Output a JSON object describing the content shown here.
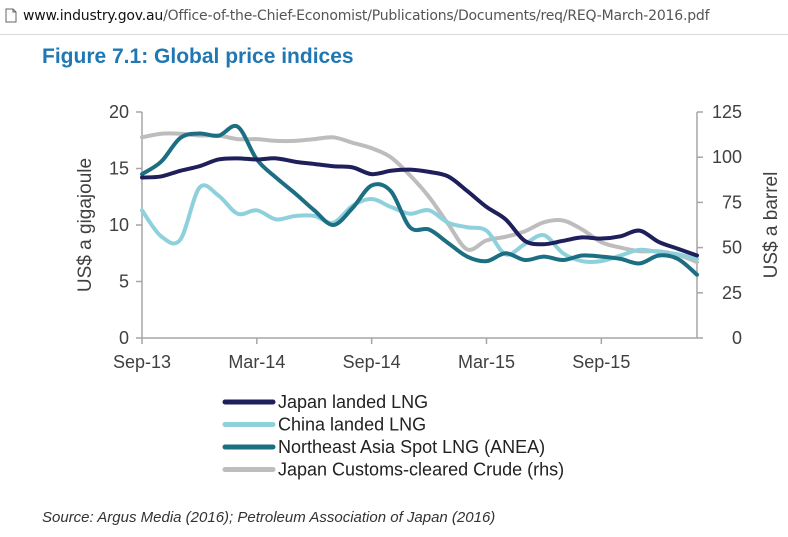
{
  "browser": {
    "url_host": "www.industry.gov.au",
    "url_path": "/Office-of-the-Chief-Economist/Publications/Documents/req/REQ-March-2016.pdf",
    "page_icon": "document-icon"
  },
  "figure": {
    "title": "Figure 7.1: Global price indices",
    "source": "Source: Argus Media (2016); Petroleum Association of Japan (2016)"
  },
  "chart_data": {
    "type": "line",
    "title": "Figure 7.1: Global price indices",
    "ylabel": "US$ a gigajoule",
    "ylabel_right": "US$ a barrel",
    "ylim": [
      0,
      20
    ],
    "ylim_right": [
      0,
      125
    ],
    "y_ticks": [
      "0",
      "5",
      "10",
      "15",
      "20"
    ],
    "y_ticks_right": [
      "0",
      "25",
      "50",
      "75",
      "100",
      "125"
    ],
    "x_ticks": [
      "Sep-13",
      "Mar-14",
      "Sep-14",
      "Mar-15",
      "Sep-15"
    ],
    "x_tick_index": [
      0,
      6,
      12,
      18,
      24
    ],
    "x_index_range": [
      0,
      29
    ],
    "grid": false,
    "legend_position": "bottom",
    "series": [
      {
        "name": "Japan landed LNG",
        "axis": "left",
        "color": "#1f1f5c",
        "x": [
          0,
          1,
          2,
          3,
          4,
          5,
          6,
          7,
          8,
          9,
          10,
          11,
          12,
          13,
          14,
          15,
          16,
          17,
          18,
          19,
          20,
          21,
          22,
          23,
          24,
          25,
          26,
          27,
          28,
          29
        ],
        "values": [
          14.2,
          14.3,
          14.8,
          15.2,
          15.8,
          15.9,
          15.8,
          15.9,
          15.6,
          15.4,
          15.2,
          15.1,
          14.5,
          14.8,
          14.9,
          14.7,
          14.3,
          13.0,
          11.6,
          10.5,
          8.6,
          8.3,
          8.6,
          8.9,
          8.8,
          9.0,
          9.5,
          8.5,
          7.9,
          7.3
        ]
      },
      {
        "name": "China landed LNG",
        "axis": "left",
        "color": "#8ed1dc",
        "x": [
          0,
          1,
          2,
          3,
          4,
          5,
          6,
          7,
          8,
          9,
          10,
          11,
          12,
          13,
          14,
          15,
          16,
          17,
          18,
          19,
          20,
          21,
          22,
          23,
          24,
          25,
          26,
          27,
          28,
          29
        ],
        "values": [
          11.3,
          9.0,
          8.7,
          13.3,
          12.6,
          11.0,
          11.3,
          10.5,
          10.8,
          10.8,
          10.2,
          11.7,
          12.3,
          11.6,
          11.0,
          11.3,
          10.2,
          9.8,
          9.5,
          7.4,
          8.3,
          9.1,
          7.5,
          6.8,
          6.8,
          7.3,
          7.8,
          7.6,
          7.4,
          7.0
        ]
      },
      {
        "name": "Northeast Asia Spot LNG (ANEA)",
        "axis": "left",
        "color": "#1c6e82",
        "x": [
          0,
          1,
          2,
          3,
          4,
          5,
          6,
          7,
          8,
          9,
          10,
          11,
          12,
          13,
          14,
          15,
          16,
          17,
          18,
          19,
          20,
          21,
          22,
          23,
          24,
          25,
          26,
          27,
          28,
          29
        ],
        "values": [
          14.5,
          15.6,
          17.7,
          18.1,
          17.9,
          18.7,
          15.8,
          14.2,
          12.8,
          11.3,
          10.0,
          11.5,
          13.5,
          13.0,
          9.8,
          9.6,
          8.4,
          7.2,
          6.8,
          7.5,
          6.9,
          7.2,
          6.9,
          7.3,
          7.2,
          7.0,
          6.6,
          7.3,
          7.0,
          5.6
        ]
      },
      {
        "name": "Japan Customs-cleared Crude (rhs)",
        "axis": "right",
        "color": "#bdbdbd",
        "x": [
          0,
          1,
          2,
          3,
          4,
          5,
          6,
          7,
          8,
          9,
          10,
          11,
          12,
          13,
          14,
          15,
          16,
          17,
          18,
          19,
          20,
          21,
          22,
          23,
          24,
          25,
          26,
          27,
          28,
          29
        ],
        "values": [
          111,
          113,
          113,
          112,
          112,
          110,
          110,
          109,
          109,
          110,
          111,
          108,
          105,
          100,
          90,
          78,
          63,
          49,
          54,
          56,
          59,
          64,
          65,
          60,
          53,
          50,
          48,
          48,
          46,
          42
        ]
      }
    ]
  }
}
